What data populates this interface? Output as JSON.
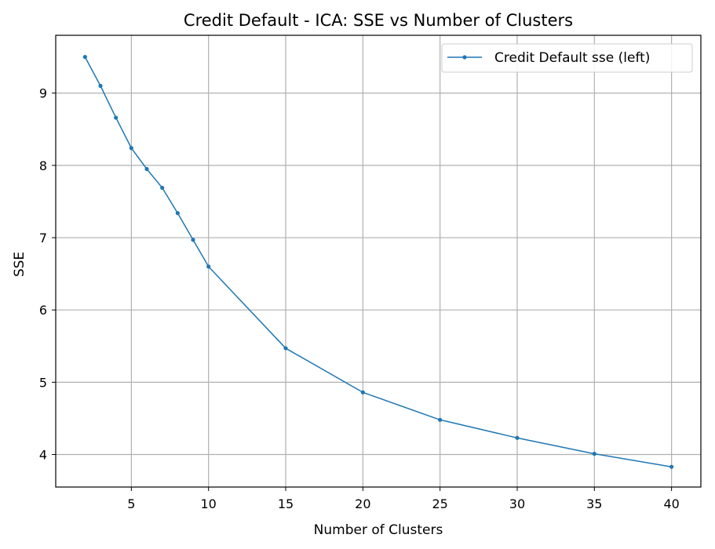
{
  "chart_data": {
    "type": "line",
    "title": "Credit Default - ICA: SSE vs Number of Clusters",
    "xlabel": "Number of Clusters",
    "ylabel": "SSE",
    "xlim": [
      0.1,
      41.9
    ],
    "ylim": [
      3.55,
      9.8
    ],
    "xticks": [
      5,
      10,
      15,
      20,
      25,
      30,
      35,
      40
    ],
    "yticks": [
      4,
      5,
      6,
      7,
      8,
      9
    ],
    "grid": true,
    "legend_position": "top-right",
    "series": [
      {
        "name": "Credit Default sse (left)",
        "color": "#1f77b4",
        "x": [
          2,
          3,
          4,
          5,
          6,
          7,
          8,
          9,
          10,
          15,
          20,
          25,
          30,
          35,
          40
        ],
        "y": [
          9.5,
          9.1,
          8.66,
          8.24,
          7.95,
          7.69,
          7.34,
          6.97,
          6.6,
          5.47,
          4.86,
          4.48,
          4.23,
          4.01,
          3.83
        ]
      }
    ]
  }
}
